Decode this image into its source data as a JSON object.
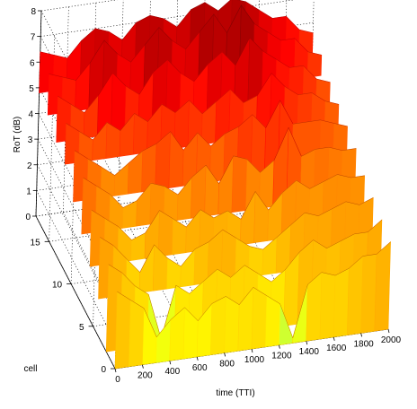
{
  "chart_data": {
    "type": "surface",
    "title": "",
    "xlabel": "time (TTI)",
    "ylabel": "cell",
    "zlabel": "RoT (dB)",
    "xlim": [
      0,
      2000
    ],
    "ylim": [
      0,
      18
    ],
    "zlim": [
      0,
      8
    ],
    "x_ticks": [
      "0",
      "200",
      "400",
      "600",
      "800",
      "1000",
      "1200",
      "1400",
      "1600",
      "1800",
      "2000"
    ],
    "y_ticks": [
      "0",
      "5",
      "10",
      "15"
    ],
    "z_ticks": [
      "0",
      "1",
      "2",
      "3",
      "4",
      "5",
      "6",
      "7",
      "8"
    ],
    "colormap": "autumn (yellow to dark red)",
    "colors": {
      "low": "#ffff00",
      "mid": "#ff8000",
      "high": "#ff0000",
      "peak": "#800000",
      "valley": "#7fff7f"
    },
    "grid": true,
    "x_values": [
      0,
      100,
      200,
      300,
      400,
      500,
      600,
      700,
      800,
      900,
      1000,
      1100,
      1200,
      1300,
      1400,
      1500,
      1600,
      1700,
      1800,
      1900,
      2000
    ],
    "cells": [
      {
        "cell": 0,
        "values": [
          3.0,
          2.6,
          2.2,
          1.0,
          1.6,
          2.0,
          1.4,
          2.0,
          2.2,
          1.8,
          2.4,
          2.0,
          1.6,
          0.2,
          2.2,
          2.6,
          2.4,
          2.6,
          3.0,
          3.0,
          3.4
        ]
      },
      {
        "cell": 2,
        "values": [
          3.4,
          3.0,
          2.4,
          2.0,
          0.2,
          2.2,
          1.8,
          2.2,
          2.6,
          2.2,
          2.6,
          2.2,
          1.8,
          2.2,
          2.8,
          3.2,
          2.8,
          3.0,
          3.2,
          3.2,
          3.6
        ]
      },
      {
        "cell": 4,
        "values": [
          3.8,
          3.4,
          2.8,
          2.2,
          3.2,
          2.6,
          2.2,
          2.8,
          3.0,
          3.4,
          3.0,
          2.6,
          2.4,
          2.8,
          3.2,
          3.6,
          3.4,
          3.6,
          3.8,
          3.6,
          3.8
        ]
      },
      {
        "cell": 6,
        "values": [
          4.2,
          3.8,
          3.4,
          2.8,
          3.0,
          3.8,
          3.4,
          3.0,
          3.6,
          3.2,
          3.4,
          3.0,
          4.0,
          3.2,
          3.8,
          4.2,
          3.8,
          4.0,
          4.2,
          4.0,
          4.0
        ]
      },
      {
        "cell": 8,
        "values": [
          4.8,
          4.4,
          4.0,
          3.4,
          3.6,
          4.2,
          4.0,
          3.6,
          4.2,
          4.6,
          3.8,
          4.8,
          4.6,
          4.0,
          4.4,
          5.6,
          4.4,
          4.6,
          4.6,
          4.4,
          4.4
        ]
      },
      {
        "cell": 10,
        "values": [
          5.2,
          4.8,
          4.4,
          4.0,
          4.4,
          4.8,
          5.0,
          5.4,
          4.6,
          5.2,
          4.6,
          5.0,
          5.2,
          5.6,
          5.0,
          6.0,
          5.0,
          5.0,
          5.0,
          4.8,
          4.6
        ]
      },
      {
        "cell": 12,
        "values": [
          5.6,
          5.2,
          4.8,
          5.4,
          5.0,
          5.6,
          5.2,
          5.8,
          5.4,
          5.8,
          5.2,
          5.6,
          6.0,
          5.4,
          5.6,
          6.4,
          5.8,
          5.4,
          5.4,
          5.0,
          4.8
        ]
      },
      {
        "cell": 14,
        "values": [
          6.0,
          5.6,
          5.2,
          5.8,
          6.6,
          6.0,
          5.6,
          6.4,
          6.8,
          6.2,
          5.8,
          6.4,
          6.8,
          6.2,
          7.2,
          6.6,
          6.2,
          5.8,
          5.8,
          5.2,
          5.0
        ]
      },
      {
        "cell": 16,
        "values": [
          6.2,
          6.0,
          5.8,
          6.4,
          7.2,
          6.6,
          6.2,
          6.8,
          7.4,
          6.8,
          6.4,
          7.0,
          7.6,
          6.8,
          7.8,
          7.0,
          6.6,
          6.2,
          6.2,
          5.6,
          5.4
        ]
      },
      {
        "cell": 18,
        "values": [
          6.4,
          6.2,
          6.0,
          6.6,
          7.0,
          6.8,
          6.4,
          7.0,
          7.2,
          7.0,
          6.6,
          7.2,
          7.4,
          7.0,
          7.4,
          7.2,
          6.8,
          6.4,
          6.4,
          5.8,
          5.6
        ]
      }
    ]
  }
}
